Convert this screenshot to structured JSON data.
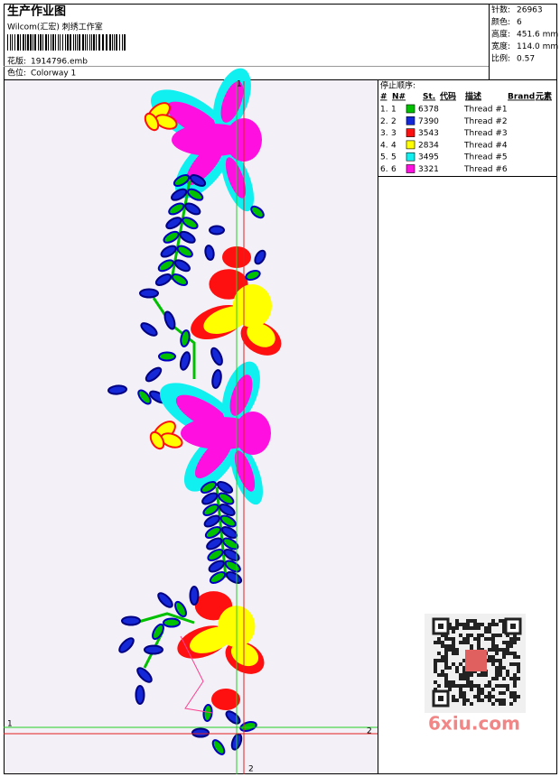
{
  "header": {
    "title": "生产作业图",
    "studio": "Wilcom(汇宏) 刺绣工作室",
    "design_label": "花版:",
    "design_file": "1914796.emb",
    "colorway_label": "色位:",
    "colorway": "Colorway 1"
  },
  "stats": [
    {
      "label": "针数:",
      "value": "26963"
    },
    {
      "label": "颜色:",
      "value": "6"
    },
    {
      "label": "高度:",
      "value": "451.6 mm"
    },
    {
      "label": "宽度:",
      "value": "114.0 mm"
    },
    {
      "label": "比例:",
      "value": "0.57"
    }
  ],
  "sequence": {
    "title": "停止顺序:",
    "columns": [
      "#",
      "N#",
      "St.",
      "代码",
      "描述",
      "Brand",
      "元素"
    ],
    "rows": [
      {
        "seq": "1.",
        "needle": "1",
        "code": "6378",
        "description": "Thread #1",
        "color": "#00c000"
      },
      {
        "seq": "2.",
        "needle": "2",
        "code": "7390",
        "description": "Thread #2",
        "color": "#1428d8"
      },
      {
        "seq": "3.",
        "needle": "3",
        "code": "3543",
        "description": "Thread #3",
        "color": "#ff1010"
      },
      {
        "seq": "4.",
        "needle": "4",
        "code": "2834",
        "description": "Thread #4",
        "color": "#ffff00"
      },
      {
        "seq": "5.",
        "needle": "5",
        "code": "3495",
        "description": "Thread #5",
        "color": "#10f0f0"
      },
      {
        "seq": "6.",
        "needle": "6",
        "code": "3321",
        "description": "Thread #6",
        "color": "#ff10e0"
      }
    ]
  },
  "markers": {
    "green_top": "1",
    "green_left": "1",
    "red_right": "2",
    "red_bottom": "2"
  },
  "watermark": "6xiu.com"
}
